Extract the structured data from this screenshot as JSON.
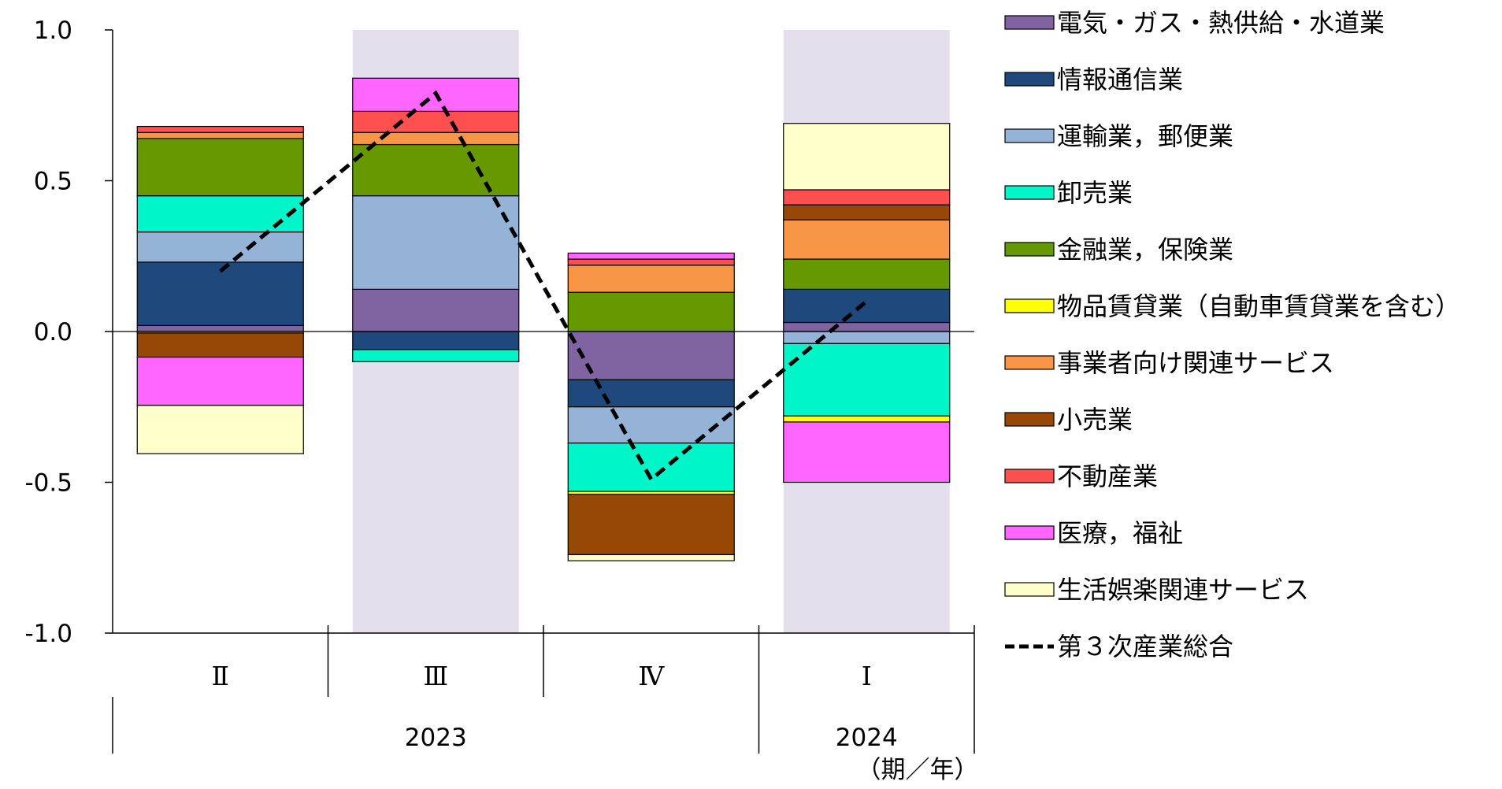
{
  "chart_data": {
    "type": "bar",
    "stacked": true,
    "categories": [
      "Ⅱ",
      "Ⅲ",
      "Ⅳ",
      "Ⅰ"
    ],
    "years": [
      {
        "label": "2023",
        "span": [
          0,
          2
        ]
      },
      {
        "label": "2024",
        "span": [
          3,
          3
        ]
      }
    ],
    "x_unit_label": "（期／年）",
    "ylim": [
      -1.0,
      1.0
    ],
    "yticks": [
      1.0,
      0.5,
      0.0,
      -0.5,
      -1.0
    ],
    "ytick_labels": [
      "1.0",
      "0.5",
      "0.0",
      "-0.5",
      "-1.0"
    ],
    "grid": false,
    "legend_position": "right",
    "shaded_categories": [
      1,
      3
    ],
    "shade_color": "#e4dfec",
    "series": [
      {
        "name": "電気・ガス・熱供給・水道業",
        "color": "#8064a2",
        "values": [
          0.02,
          0.14,
          -0.16,
          0.03
        ]
      },
      {
        "name": "情報通信業",
        "color": "#1f497d",
        "values": [
          0.21,
          -0.06,
          -0.09,
          0.11
        ]
      },
      {
        "name": "運輸業，郵便業",
        "color": "#95b3d7",
        "values": [
          0.1,
          0.31,
          -0.12,
          -0.04
        ]
      },
      {
        "name": "卸売業",
        "color": "#00f5c8",
        "values": [
          0.12,
          -0.04,
          -0.16,
          -0.24
        ]
      },
      {
        "name": "金融業，保険業",
        "color": "#669900",
        "values": [
          0.19,
          0.17,
          0.13,
          0.1
        ]
      },
      {
        "name": "物品賃貸業（自動車賃貸業を含む）",
        "color": "#ffff00",
        "values": [
          -0.005,
          0.0,
          -0.01,
          -0.02
        ]
      },
      {
        "name": "事業者向け関連サービス",
        "color": "#f79646",
        "values": [
          0.02,
          0.04,
          0.09,
          0.13
        ]
      },
      {
        "name": "小売業",
        "color": "#974706",
        "values": [
          -0.08,
          0.0,
          -0.2,
          0.05
        ]
      },
      {
        "name": "不動産業",
        "color": "#ff5050",
        "values": [
          0.02,
          0.07,
          0.02,
          0.05
        ]
      },
      {
        "name": "医療，福祉",
        "color": "#ff66ff",
        "values": [
          -0.16,
          0.11,
          0.02,
          -0.2
        ]
      },
      {
        "name": "生活娯楽関連サービス",
        "color": "#ffffcc",
        "values": [
          -0.16,
          0.0,
          -0.02,
          0.22
        ]
      }
    ],
    "total_series": {
      "name": "第３次産業総合",
      "style": "dashed",
      "color": "#000000",
      "values": [
        0.2,
        0.79,
        -0.49,
        0.1
      ]
    }
  }
}
